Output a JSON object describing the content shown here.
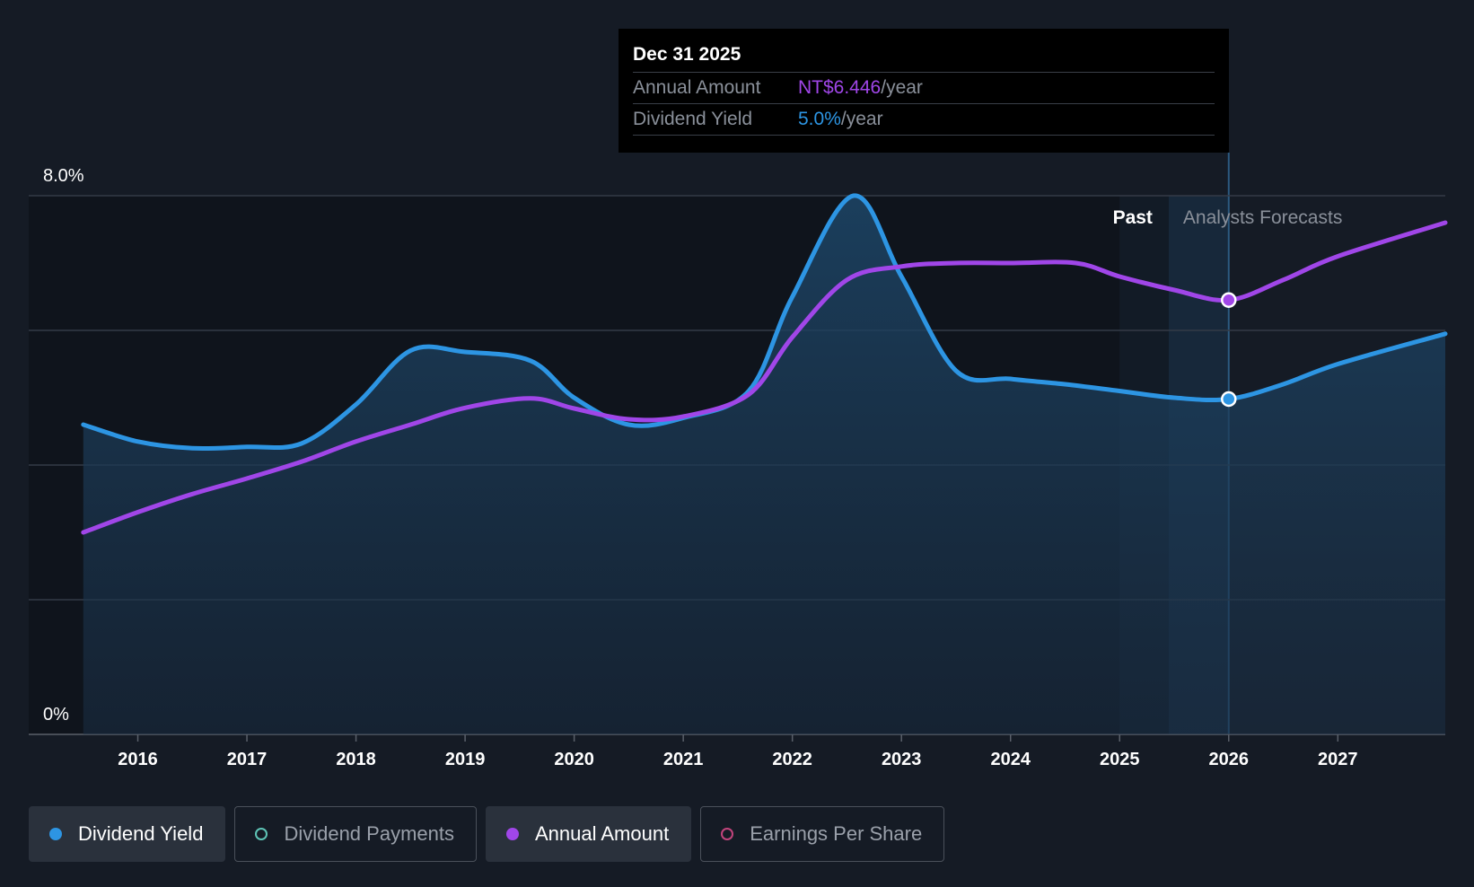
{
  "chart_data": {
    "type": "line",
    "y_axis_labels": [
      "8.0%",
      "0%"
    ],
    "ylim": [
      0,
      8.0
    ],
    "y_unit": "%",
    "x_ticks": [
      "2016",
      "2017",
      "2018",
      "2019",
      "2020",
      "2021",
      "2022",
      "2023",
      "2024",
      "2025",
      "2026",
      "2027"
    ],
    "xlim": [
      2015.0,
      2027.985
    ],
    "grid": true,
    "regions": {
      "past_label": "Past",
      "forecast_label": "Analysts Forecasts",
      "divider_x": 2025.45,
      "current_x": 2026.0
    },
    "series": [
      {
        "name": "Dividend Yield",
        "axis": "percent",
        "color": "#2d95e3",
        "filled": true,
        "points": [
          [
            2015.5,
            4.6
          ],
          [
            2016.0,
            4.35
          ],
          [
            2016.5,
            4.25
          ],
          [
            2017.0,
            4.27
          ],
          [
            2017.5,
            4.32
          ],
          [
            2018.0,
            4.9
          ],
          [
            2018.5,
            5.7
          ],
          [
            2019.0,
            5.68
          ],
          [
            2019.6,
            5.55
          ],
          [
            2020.0,
            5.0
          ],
          [
            2020.5,
            4.6
          ],
          [
            2021.0,
            4.7
          ],
          [
            2021.6,
            5.1
          ],
          [
            2022.0,
            6.5
          ],
          [
            2022.56,
            8.0
          ],
          [
            2023.0,
            6.8
          ],
          [
            2023.5,
            5.4
          ],
          [
            2024.0,
            5.28
          ],
          [
            2024.5,
            5.2
          ],
          [
            2025.0,
            5.1
          ],
          [
            2025.5,
            5.0
          ],
          [
            2026.0,
            4.98
          ],
          [
            2026.5,
            5.2
          ],
          [
            2027.0,
            5.5
          ],
          [
            2027.985,
            5.95
          ]
        ]
      },
      {
        "name": "Annual Amount",
        "axis": "amount",
        "color": "#a046e8",
        "points": [
          [
            2015.5,
            3.0
          ],
          [
            2016.0,
            3.3
          ],
          [
            2016.5,
            3.57
          ],
          [
            2017.0,
            3.8
          ],
          [
            2017.5,
            4.05
          ],
          [
            2018.0,
            4.35
          ],
          [
            2018.5,
            4.6
          ],
          [
            2019.0,
            4.85
          ],
          [
            2019.6,
            4.99
          ],
          [
            2020.0,
            4.84
          ],
          [
            2020.5,
            4.68
          ],
          [
            2021.0,
            4.72
          ],
          [
            2021.6,
            5.05
          ],
          [
            2022.0,
            5.9
          ],
          [
            2022.5,
            6.75
          ],
          [
            2023.0,
            6.95
          ],
          [
            2023.5,
            7.0
          ],
          [
            2024.0,
            7.0
          ],
          [
            2024.6,
            7.0
          ],
          [
            2025.0,
            6.8
          ],
          [
            2025.5,
            6.6
          ],
          [
            2026.0,
            6.45
          ],
          [
            2026.5,
            6.75
          ],
          [
            2027.0,
            7.1
          ],
          [
            2027.985,
            7.6
          ]
        ]
      }
    ],
    "tooltip": {
      "date": "Dec 31 2025",
      "annual_amount_label": "Annual Amount",
      "annual_amount_value": "NT$6.446",
      "dividend_yield_label": "Dividend Yield",
      "dividend_yield_value": "5.0%",
      "unit": "/year"
    },
    "legend": [
      {
        "label": "Dividend Yield",
        "color": "#2d95e3",
        "active": true,
        "filled": true
      },
      {
        "label": "Dividend Payments",
        "color": "#5ec4b6",
        "active": false,
        "filled": false
      },
      {
        "label": "Annual Amount",
        "color": "#a046e8",
        "active": true,
        "filled": true
      },
      {
        "label": "Earnings Per Share",
        "color": "#c2447c",
        "active": false,
        "filled": false
      }
    ]
  }
}
